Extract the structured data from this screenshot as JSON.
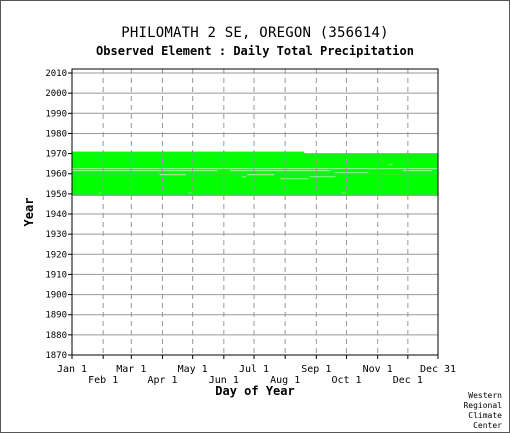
{
  "title": "PHILOMATH 2 SE, OREGON   (356614)",
  "subtitle": "Observed Element : Daily Total Precipitation",
  "credit": [
    "Western",
    "Regional",
    "Climate",
    "Center"
  ],
  "colors": {
    "data": "#00ff00",
    "gap": "#ffffff",
    "grid": "#999999",
    "axis": "#000000"
  },
  "chart_data": {
    "type": "heatmap",
    "xlabel": "Day of Year",
    "ylabel": "Year",
    "xlim": [
      1,
      365
    ],
    "ylim": [
      1870,
      2012
    ],
    "grid": true,
    "y_ticks": [
      1870,
      1880,
      1890,
      1900,
      1910,
      1920,
      1930,
      1940,
      1950,
      1960,
      1970,
      1980,
      1990,
      2000,
      2010
    ],
    "x_ticks": [
      {
        "label": "Jan 1",
        "day": 1,
        "row": 0
      },
      {
        "label": "Feb 1",
        "day": 32,
        "row": 1
      },
      {
        "label": "Mar 1",
        "day": 60,
        "row": 0
      },
      {
        "label": "Apr 1",
        "day": 91,
        "row": 1
      },
      {
        "label": "May 1",
        "day": 121,
        "row": 0
      },
      {
        "label": "Jun 1",
        "day": 152,
        "row": 1
      },
      {
        "label": "Jul 1",
        "day": 182,
        "row": 0
      },
      {
        "label": "Aug 1",
        "day": 213,
        "row": 1
      },
      {
        "label": "Sep 1",
        "day": 244,
        "row": 0
      },
      {
        "label": "Oct 1",
        "day": 274,
        "row": 1
      },
      {
        "label": "Nov 1",
        "day": 305,
        "row": 0
      },
      {
        "label": "Dec 1",
        "day": 335,
        "row": 1
      },
      {
        "label": "Dec 31",
        "day": 365,
        "row": 0
      }
    ],
    "data_blocks": [
      {
        "year_start": 1949,
        "year_end": 1970,
        "day_start": 1,
        "day_end": 365
      },
      {
        "year_start": 1970,
        "year_end": 1971,
        "day_start": 1,
        "day_end": 232
      }
    ],
    "missing_segments": [
      {
        "year": 1962,
        "day_start": 1,
        "day_end": 365
      },
      {
        "year": 1961,
        "day_start": 1,
        "day_end": 146
      },
      {
        "year": 1961,
        "day_start": 158,
        "day_end": 258
      },
      {
        "year": 1961,
        "day_start": 330,
        "day_end": 359
      },
      {
        "year": 1959,
        "day_start": 88,
        "day_end": 114
      },
      {
        "year": 1959,
        "day_start": 175,
        "day_end": 202
      },
      {
        "year": 1958,
        "day_start": 170,
        "day_end": 174
      },
      {
        "year": 1958,
        "day_start": 237,
        "day_end": 263
      },
      {
        "year": 1957,
        "day_start": 208,
        "day_end": 236
      },
      {
        "year": 1950,
        "day_start": 28,
        "day_end": 30
      },
      {
        "year": 1950,
        "day_start": 117,
        "day_end": 120
      },
      {
        "year": 1950,
        "day_start": 269,
        "day_end": 273
      },
      {
        "year": 1964,
        "day_start": 316,
        "day_end": 320
      },
      {
        "year": 1960,
        "day_start": 262,
        "day_end": 296
      }
    ]
  }
}
